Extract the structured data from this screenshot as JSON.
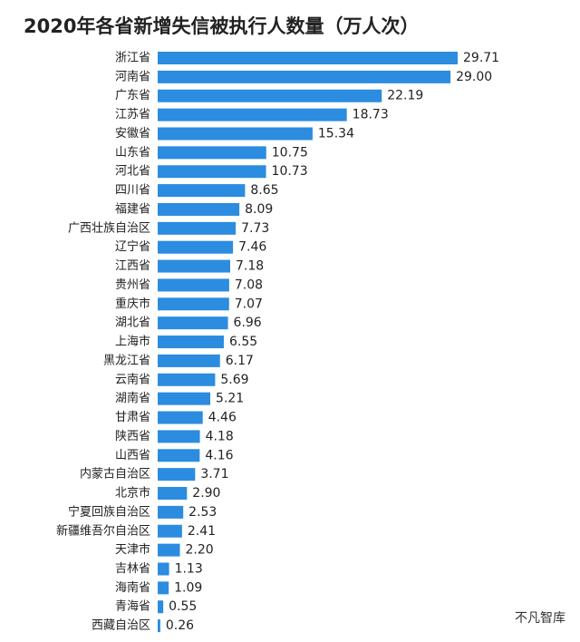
{
  "chart_data": {
    "type": "bar",
    "orientation": "horizontal",
    "title": "2020年各省新增失信被执行人数量（万人次）",
    "categories": [
      "浙江省",
      "河南省",
      "广东省",
      "江苏省",
      "安徽省",
      "山东省",
      "河北省",
      "四川省",
      "福建省",
      "广西壮族自治区",
      "辽宁省",
      "江西省",
      "贵州省",
      "重庆市",
      "湖北省",
      "上海市",
      "黑龙江省",
      "云南省",
      "湖南省",
      "甘肃省",
      "陕西省",
      "山西省",
      "内蒙古自治区",
      "北京市",
      "宁夏回族自治区",
      "新疆维吾尔自治区",
      "天津市",
      "吉林省",
      "海南省",
      "青海省",
      "西藏自治区"
    ],
    "values": [
      29.71,
      29.0,
      22.19,
      18.73,
      15.34,
      10.75,
      10.73,
      8.65,
      8.09,
      7.73,
      7.46,
      7.18,
      7.08,
      7.07,
      6.96,
      6.55,
      6.17,
      5.69,
      5.21,
      4.46,
      4.18,
      4.16,
      3.71,
      2.9,
      2.53,
      2.41,
      2.2,
      1.13,
      1.09,
      0.55,
      0.26
    ],
    "value_labels": [
      "29.71",
      "29.00",
      "22.19",
      "18.73",
      "15.34",
      "10.75",
      "10.73",
      "8.65",
      "8.09",
      "7.73",
      "7.46",
      "7.18",
      "7.08",
      "7.07",
      "6.96",
      "6.55",
      "6.17",
      "5.69",
      "5.21",
      "4.46",
      "4.18",
      "4.16",
      "3.71",
      "2.90",
      "2.53",
      "2.41",
      "2.20",
      "1.13",
      "1.09",
      "0.55",
      "0.26"
    ],
    "color": "#2b8ce0",
    "watermark": "不凡智库"
  }
}
